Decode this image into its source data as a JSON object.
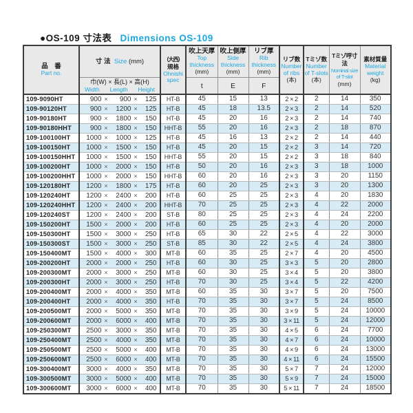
{
  "title": {
    "jp": "●OS-109 寸法表",
    "en": "Dimensions OS-109"
  },
  "colors": {
    "accent": "#1ba7df",
    "header_bg": "#e9e9e9",
    "row_alt": "#d7ebf5"
  },
  "glyphs": {
    "multiply": "×"
  },
  "header": {
    "part": {
      "jp": "品　番",
      "en": "Part no."
    },
    "size": {
      "jp": "寸 法",
      "en": "Size",
      "unit": "(mm)",
      "sub_jp": "巾(W) × 長(L) × 高(H)",
      "sub_en": [
        "Width",
        "Length",
        "Height"
      ]
    },
    "spec": {
      "jp1": "（大西）",
      "jp2": "規格",
      "en1": "Ohnishi",
      "en2": "spec"
    },
    "top": {
      "jp": "吹上天厚",
      "en1": "Top",
      "en2": "thickness",
      "unit": "(mm)",
      "sym": "t"
    },
    "side": {
      "jp": "吹上側厚",
      "en1": "Side",
      "en2": "thickness",
      "unit": "(mm)",
      "sym": "E"
    },
    "rib": {
      "jp": "リブ厚",
      "en1": "Rib",
      "en2": "thickness",
      "unit": "(mm)",
      "sym": "F"
    },
    "ribs_n": {
      "jp": "リブ数",
      "en1": "Number",
      "en2": "of ribs",
      "unit": "(本)"
    },
    "tslot_n": {
      "jp": "Tミゾ数",
      "en1": "Number",
      "en2": "of T-slots",
      "unit": "(本)"
    },
    "tslot_s": {
      "jp": "Tミゾ呼寸法",
      "en1": "Nominal size",
      "en2": "of T-slot",
      "unit": "(mm)"
    },
    "weight": {
      "jp": "素材質量",
      "en1": "Material",
      "en2": "weight",
      "unit": "(kg)"
    }
  },
  "rows": [
    {
      "part": "109-9090HT",
      "w": "900",
      "l": "900",
      "h": "125",
      "spec": "HT-B",
      "t": "45",
      "e": "15",
      "f": "13",
      "ribs": "2 × 2",
      "slots": "2",
      "slot_size": "14",
      "weight": "350"
    },
    {
      "part": "109-90120HT",
      "w": "900",
      "l": "1200",
      "h": "125",
      "spec": "HT-B",
      "t": "45",
      "e": "18",
      "f": "13.5",
      "ribs": "2 × 3",
      "slots": "2",
      "slot_size": "14",
      "weight": "520"
    },
    {
      "part": "109-90180HT",
      "w": "900",
      "l": "1800",
      "h": "150",
      "spec": "HT-B",
      "t": "45",
      "e": "20",
      "f": "16",
      "ribs": "2 × 3",
      "slots": "2",
      "slot_size": "14",
      "weight": "740"
    },
    {
      "part": "109-90180HHT",
      "w": "900",
      "l": "1800",
      "h": "150",
      "spec": "HHT-B",
      "t": "55",
      "e": "20",
      "f": "16",
      "ribs": "2 × 3",
      "slots": "2",
      "slot_size": "18",
      "weight": "870"
    },
    {
      "part": "109-100100HT",
      "w": "1000",
      "l": "1000",
      "h": "125",
      "spec": "HT-B",
      "t": "45",
      "e": "16",
      "f": "13",
      "ribs": "2 × 2",
      "slots": "2",
      "slot_size": "14",
      "weight": "440"
    },
    {
      "part": "109-100150HT",
      "w": "1000",
      "l": "1500",
      "h": "150",
      "spec": "HT-B",
      "t": "45",
      "e": "20",
      "f": "15",
      "ribs": "2 × 2",
      "slots": "3",
      "slot_size": "14",
      "weight": "720"
    },
    {
      "part": "109-100150HHT",
      "w": "1000",
      "l": "1500",
      "h": "150",
      "spec": "HHT-B",
      "t": "55",
      "e": "20",
      "f": "15",
      "ribs": "2 × 2",
      "slots": "3",
      "slot_size": "18",
      "weight": "840"
    },
    {
      "part": "109-100200HT",
      "w": "1000",
      "l": "2000",
      "h": "150",
      "spec": "HT-B",
      "t": "50",
      "e": "20",
      "f": "16",
      "ribs": "2 × 3",
      "slots": "3",
      "slot_size": "18",
      "weight": "1000"
    },
    {
      "part": "109-100200HHT",
      "w": "1000",
      "l": "2000",
      "h": "150",
      "spec": "HHT-B",
      "t": "60",
      "e": "20",
      "f": "16",
      "ribs": "2 × 3",
      "slots": "3",
      "slot_size": "20",
      "weight": "1150"
    },
    {
      "part": "109-120180HT",
      "w": "1200",
      "l": "1800",
      "h": "175",
      "spec": "HT-B",
      "t": "60",
      "e": "20",
      "f": "25",
      "ribs": "2 × 3",
      "slots": "3",
      "slot_size": "20",
      "weight": "1300"
    },
    {
      "part": "109-120240HT",
      "w": "1200",
      "l": "2400",
      "h": "200",
      "spec": "HT-B",
      "t": "60",
      "e": "25",
      "f": "25",
      "ribs": "2 × 3",
      "slots": "4",
      "slot_size": "20",
      "weight": "1830"
    },
    {
      "part": "109-120240HHT",
      "w": "1200",
      "l": "2400",
      "h": "200",
      "spec": "HHT-B",
      "t": "70",
      "e": "25",
      "f": "25",
      "ribs": "2 × 3",
      "slots": "4",
      "slot_size": "22",
      "weight": "2000"
    },
    {
      "part": "109-120240ST",
      "w": "1200",
      "l": "2400",
      "h": "200",
      "spec": "ST-B",
      "t": "80",
      "e": "25",
      "f": "25",
      "ribs": "2 × 3",
      "slots": "4",
      "slot_size": "24",
      "weight": "2200"
    },
    {
      "part": "109-150200HT",
      "w": "1500",
      "l": "2000",
      "h": "200",
      "spec": "HT-B",
      "t": "60",
      "e": "25",
      "f": "25",
      "ribs": "2 × 3",
      "slots": "4",
      "slot_size": "20",
      "weight": "2000"
    },
    {
      "part": "109-150300HT",
      "w": "1500",
      "l": "3000",
      "h": "250",
      "spec": "HT-B",
      "t": "65",
      "e": "30",
      "f": "22",
      "ribs": "2 × 5",
      "slots": "4",
      "slot_size": "22",
      "weight": "3000"
    },
    {
      "part": "109-150300ST",
      "w": "1500",
      "l": "3000",
      "h": "250",
      "spec": "ST-B",
      "t": "85",
      "e": "30",
      "f": "22",
      "ribs": "2 × 5",
      "slots": "4",
      "slot_size": "24",
      "weight": "3800"
    },
    {
      "part": "109-150400MT",
      "w": "1500",
      "l": "4000",
      "h": "300",
      "spec": "MT-B",
      "t": "60",
      "e": "35",
      "f": "25",
      "ribs": "2 × 7",
      "slots": "4",
      "slot_size": "20",
      "weight": "4500"
    },
    {
      "part": "109-200200HT",
      "w": "2000",
      "l": "2000",
      "h": "250",
      "spec": "HT-B",
      "t": "60",
      "e": "30",
      "f": "25",
      "ribs": "3 × 3",
      "slots": "5",
      "slot_size": "20",
      "weight": "2800"
    },
    {
      "part": "109-200300MT",
      "w": "2000",
      "l": "3000",
      "h": "250",
      "spec": "MT-B",
      "t": "60",
      "e": "30",
      "f": "25",
      "ribs": "3 × 4",
      "slots": "5",
      "slot_size": "20",
      "weight": "3800"
    },
    {
      "part": "109-200300HT",
      "w": "2000",
      "l": "3000",
      "h": "250",
      "spec": "HT-B",
      "t": "70",
      "e": "30",
      "f": "25",
      "ribs": "3 × 4",
      "slots": "5",
      "slot_size": "22",
      "weight": "4200"
    },
    {
      "part": "109-200400MT",
      "w": "2000",
      "l": "4000",
      "h": "350",
      "spec": "MT-B",
      "t": "60",
      "e": "35",
      "f": "30",
      "ribs": "3 × 7",
      "slots": "5",
      "slot_size": "20",
      "weight": "7500"
    },
    {
      "part": "109-200400HT",
      "w": "2000",
      "l": "4000",
      "h": "350",
      "spec": "HT-B",
      "t": "70",
      "e": "35",
      "f": "30",
      "ribs": "3 × 7",
      "slots": "5",
      "slot_size": "24",
      "weight": "8500"
    },
    {
      "part": "109-200500MT",
      "w": "2000",
      "l": "5000",
      "h": "350",
      "spec": "MT-B",
      "t": "70",
      "e": "35",
      "f": "30",
      "ribs": "3 × 9",
      "slots": "5",
      "slot_size": "24",
      "weight": "10000"
    },
    {
      "part": "109-200600MT",
      "w": "2000",
      "l": "6000",
      "h": "400",
      "spec": "MT-B",
      "t": "70",
      "e": "35",
      "f": "30",
      "ribs": "3 × 11",
      "slots": "5",
      "slot_size": "24",
      "weight": "12000"
    },
    {
      "part": "109-250300MT",
      "w": "2500",
      "l": "3000",
      "h": "350",
      "spec": "MT-B",
      "t": "70",
      "e": "35",
      "f": "30",
      "ribs": "4 × 5",
      "slots": "6",
      "slot_size": "24",
      "weight": "7700"
    },
    {
      "part": "109-250400MT",
      "w": "2500",
      "l": "4000",
      "h": "350",
      "spec": "MT-B",
      "t": "70",
      "e": "35",
      "f": "30",
      "ribs": "4 × 7",
      "slots": "6",
      "slot_size": "24",
      "weight": "10000"
    },
    {
      "part": "109-250500MT",
      "w": "2500",
      "l": "5000",
      "h": "400",
      "spec": "MT-B",
      "t": "70",
      "e": "35",
      "f": "30",
      "ribs": "4 × 9",
      "slots": "6",
      "slot_size": "24",
      "weight": "13000"
    },
    {
      "part": "109-250600MT",
      "w": "2500",
      "l": "6000",
      "h": "400",
      "spec": "MT-B",
      "t": "70",
      "e": "35",
      "f": "30",
      "ribs": "4 × 11",
      "slots": "6",
      "slot_size": "24",
      "weight": "15500"
    },
    {
      "part": "109-300400MT",
      "w": "3000",
      "l": "4000",
      "h": "350",
      "spec": "MT-B",
      "t": "70",
      "e": "35",
      "f": "30",
      "ribs": "5 × 7",
      "slots": "7",
      "slot_size": "24",
      "weight": "12000"
    },
    {
      "part": "109-300500MT",
      "w": "3000",
      "l": "5000",
      "h": "400",
      "spec": "MT-B",
      "t": "70",
      "e": "35",
      "f": "30",
      "ribs": "5 × 9",
      "slots": "7",
      "slot_size": "24",
      "weight": "15000"
    },
    {
      "part": "109-300600MT",
      "w": "3000",
      "l": "6000",
      "h": "400",
      "spec": "MT-B",
      "t": "70",
      "e": "35",
      "f": "30",
      "ribs": "5 × 11",
      "slots": "7",
      "slot_size": "24",
      "weight": "18500"
    }
  ]
}
